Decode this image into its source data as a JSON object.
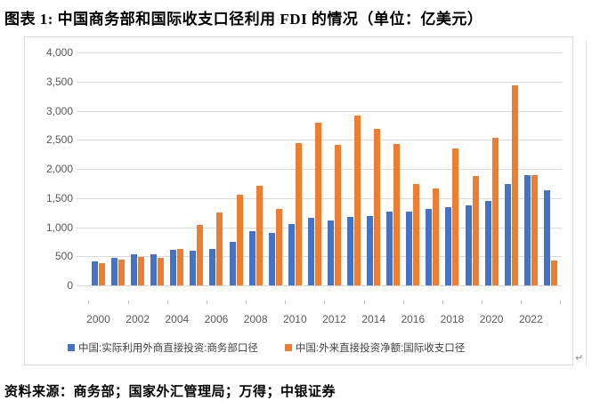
{
  "title": "图表 1: 中国商务部和国际收支口径利用 FDI 的情况（单位：亿美元）",
  "source": "资料来源：商务部；国家外汇管理局；万得；中银证券",
  "return_mark": "↵",
  "colors": {
    "series1": "#4472C4",
    "series2": "#ED7D31",
    "gridline": "#D9D9D9",
    "axis_text": "#595959",
    "legend_text": "#404040",
    "chart_border": "#D9D9D9"
  },
  "chart_data": {
    "type": "bar",
    "title": "中国商务部和国际收支口径利用 FDI 的情况",
    "unit": "亿美元",
    "categories": [
      "2000",
      "2001",
      "2002",
      "2003",
      "2004",
      "2005",
      "2006",
      "2007",
      "2008",
      "2009",
      "2010",
      "2011",
      "2012",
      "2013",
      "2014",
      "2015",
      "2016",
      "2017",
      "2018",
      "2019",
      "2020",
      "2021",
      "2022",
      "2023"
    ],
    "x_tick_labels": [
      "2000",
      "2002",
      "2004",
      "2006",
      "2008",
      "2010",
      "2012",
      "2014",
      "2016",
      "2018",
      "2020",
      "2022"
    ],
    "y_tick_labels": [
      "0",
      "500",
      "1,000",
      "1,500",
      "2,000",
      "2,500",
      "3,000",
      "3,500",
      "4,000"
    ],
    "ylim": [
      0,
      4000
    ],
    "y_step": 500,
    "grid": "horizontal",
    "legend_position": "bottom",
    "series": [
      {
        "name": "中国:实际利用外商直接投资:商务部口径",
        "color": "#4472C4",
        "values": [
          407,
          469,
          527,
          535,
          606,
          603,
          630,
          748,
          924,
          900,
          1057,
          1160,
          1117,
          1176,
          1196,
          1263,
          1260,
          1310,
          1350,
          1381,
          1444,
          1735,
          1891,
          1633
        ]
      },
      {
        "name": "中国:外来直接投资净额:国际收支口径",
        "color": "#ED7D31",
        "values": [
          384,
          442,
          493,
          472,
          621,
          1041,
          1247,
          1560,
          1714,
          1310,
          2437,
          2801,
          2412,
          2909,
          2680,
          2424,
          1747,
          1663,
          2354,
          1872,
          2531,
          3441,
          1900,
          427
        ]
      }
    ]
  }
}
